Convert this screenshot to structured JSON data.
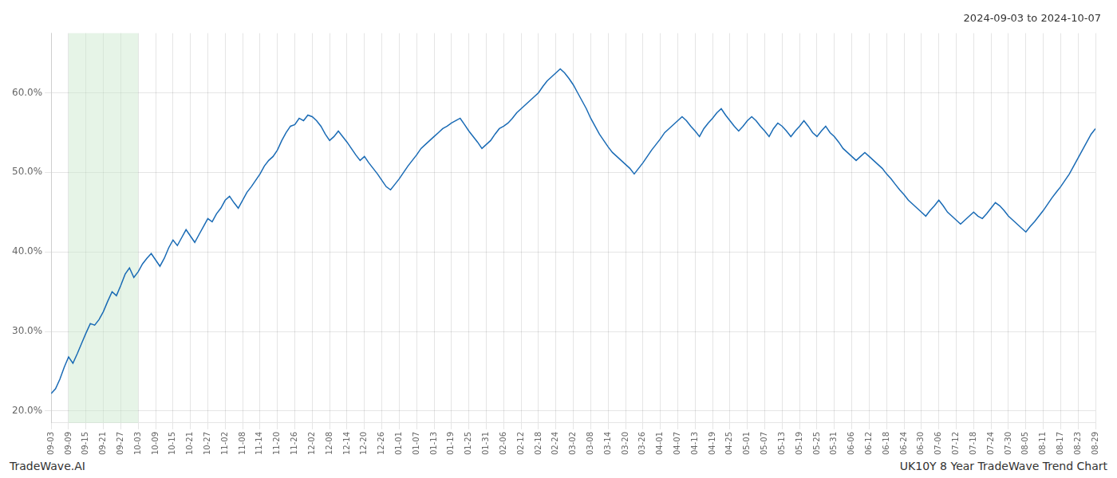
{
  "chart_data": {
    "type": "line",
    "title": "2024-09-03 to 2024-10-07",
    "footer_left": "TradeWave.AI",
    "footer_right": "UK10Y 8 Year TradeWave Trend Chart",
    "color": "#1a6bb5",
    "grid": true,
    "ylim": [
      0.185,
      0.675
    ],
    "yticks": [
      {
        "value": 0.2,
        "label": "20.0%"
      },
      {
        "value": 0.3,
        "label": "30.0%"
      },
      {
        "value": 0.4,
        "label": "40.0%"
      },
      {
        "value": 0.5,
        "label": "50.0%"
      },
      {
        "value": 0.6,
        "label": "60.0%"
      }
    ],
    "shaded_region": {
      "start": "09-09",
      "end": "10-03",
      "color": "#c8e6c9"
    },
    "categories": [
      "09-03",
      null,
      null,
      null,
      "09-09",
      null,
      null,
      null,
      "09-15",
      null,
      null,
      null,
      "09-21",
      null,
      null,
      null,
      "09-27",
      null,
      null,
      null,
      "10-03",
      null,
      null,
      null,
      "10-09",
      null,
      null,
      null,
      "10-15",
      null,
      null,
      null,
      "10-21",
      null,
      null,
      null,
      "10-27",
      null,
      null,
      null,
      "11-02",
      null,
      null,
      null,
      "11-08",
      null,
      null,
      null,
      "11-14",
      null,
      null,
      null,
      "11-20",
      null,
      null,
      null,
      "11-26",
      null,
      null,
      null,
      "12-02",
      null,
      null,
      null,
      "12-08",
      null,
      null,
      null,
      "12-14",
      null,
      null,
      null,
      "12-20",
      null,
      null,
      null,
      "12-26",
      null,
      null,
      null,
      "01-01",
      null,
      null,
      null,
      "01-07",
      null,
      null,
      null,
      "01-13",
      null,
      null,
      null,
      "01-19",
      null,
      null,
      null,
      "01-25",
      null,
      null,
      null,
      "01-31",
      null,
      null,
      null,
      "02-06",
      null,
      null,
      null,
      "02-12",
      null,
      null,
      null,
      "02-18",
      null,
      null,
      null,
      "02-24",
      null,
      null,
      null,
      "03-02",
      null,
      null,
      null,
      "03-08",
      null,
      null,
      null,
      "03-14",
      null,
      null,
      null,
      "03-20",
      null,
      null,
      null,
      "03-26",
      null,
      null,
      null,
      "04-01",
      null,
      null,
      null,
      "04-07",
      null,
      null,
      null,
      "04-13",
      null,
      null,
      null,
      "04-19",
      null,
      null,
      null,
      "04-25",
      null,
      null,
      null,
      "05-01",
      null,
      null,
      null,
      "05-07",
      null,
      null,
      null,
      "05-13",
      null,
      null,
      null,
      "05-19",
      null,
      null,
      null,
      "05-25",
      null,
      null,
      null,
      "05-31",
      null,
      null,
      null,
      "06-06",
      null,
      null,
      null,
      "06-12",
      null,
      null,
      null,
      "06-18",
      null,
      null,
      null,
      "06-24",
      null,
      null,
      null,
      "06-30",
      null,
      null,
      null,
      "07-06",
      null,
      null,
      null,
      "07-12",
      null,
      null,
      null,
      "07-18",
      null,
      null,
      null,
      "07-24",
      null,
      null,
      null,
      "07-30",
      null,
      null,
      null,
      "08-05",
      null,
      null,
      null,
      "08-11",
      null,
      null,
      null,
      "08-17",
      null,
      null,
      null,
      "08-23",
      null,
      null,
      null,
      "08-29"
    ],
    "values": [
      0.222,
      0.228,
      0.24,
      0.255,
      0.268,
      0.26,
      0.272,
      0.285,
      0.298,
      0.31,
      0.308,
      0.315,
      0.325,
      0.338,
      0.35,
      0.345,
      0.358,
      0.372,
      0.38,
      0.368,
      0.375,
      0.385,
      0.392,
      0.398,
      0.39,
      0.382,
      0.392,
      0.405,
      0.415,
      0.408,
      0.418,
      0.428,
      0.42,
      0.412,
      0.422,
      0.432,
      0.442,
      0.438,
      0.448,
      0.455,
      0.465,
      0.47,
      0.462,
      0.455,
      0.465,
      0.475,
      0.482,
      0.49,
      0.498,
      0.508,
      0.515,
      0.52,
      0.528,
      0.54,
      0.55,
      0.558,
      0.56,
      0.568,
      0.565,
      0.572,
      0.57,
      0.565,
      0.558,
      0.548,
      0.54,
      0.545,
      0.552,
      0.545,
      0.538,
      0.53,
      0.522,
      0.515,
      0.52,
      0.512,
      0.505,
      0.498,
      0.49,
      0.482,
      0.478,
      0.485,
      0.492,
      0.5,
      0.508,
      0.515,
      0.522,
      0.53,
      0.535,
      0.54,
      0.545,
      0.55,
      0.555,
      0.558,
      0.562,
      0.565,
      0.568,
      0.56,
      0.552,
      0.545,
      0.538,
      0.53,
      0.535,
      0.54,
      0.548,
      0.555,
      0.558,
      0.562,
      0.568,
      0.575,
      0.58,
      0.585,
      0.59,
      0.595,
      0.6,
      0.608,
      0.615,
      0.62,
      0.625,
      0.63,
      0.625,
      0.618,
      0.61,
      0.6,
      0.59,
      0.58,
      0.568,
      0.558,
      0.548,
      0.54,
      0.532,
      0.525,
      0.52,
      0.515,
      0.51,
      0.505,
      0.498,
      0.505,
      0.512,
      0.52,
      0.528,
      0.535,
      0.542,
      0.55,
      0.555,
      0.56,
      0.565,
      0.57,
      0.565,
      0.558,
      0.552,
      0.545,
      0.555,
      0.562,
      0.568,
      0.575,
      0.58,
      0.572,
      0.565,
      0.558,
      0.552,
      0.558,
      0.565,
      0.57,
      0.565,
      0.558,
      0.552,
      0.545,
      0.555,
      0.562,
      0.558,
      0.552,
      0.545,
      0.552,
      0.558,
      0.565,
      0.558,
      0.55,
      0.545,
      0.552,
      0.558,
      0.55,
      0.545,
      0.538,
      0.53,
      0.525,
      0.52,
      0.515,
      0.52,
      0.525,
      0.52,
      0.515,
      0.51,
      0.505,
      0.498,
      0.492,
      0.485,
      0.478,
      0.472,
      0.465,
      0.46,
      0.455,
      0.45,
      0.445,
      0.452,
      0.458,
      0.465,
      0.458,
      0.45,
      0.445,
      0.44,
      0.435,
      0.44,
      0.445,
      0.45,
      0.445,
      0.442,
      0.448,
      0.455,
      0.462,
      0.458,
      0.452,
      0.445,
      0.44,
      0.435,
      0.43,
      0.425,
      0.432,
      0.438,
      0.445,
      0.452,
      0.46,
      0.468,
      0.475,
      0.482,
      0.49,
      0.498,
      0.508,
      0.518,
      0.528,
      0.538,
      0.548,
      0.555
    ]
  }
}
